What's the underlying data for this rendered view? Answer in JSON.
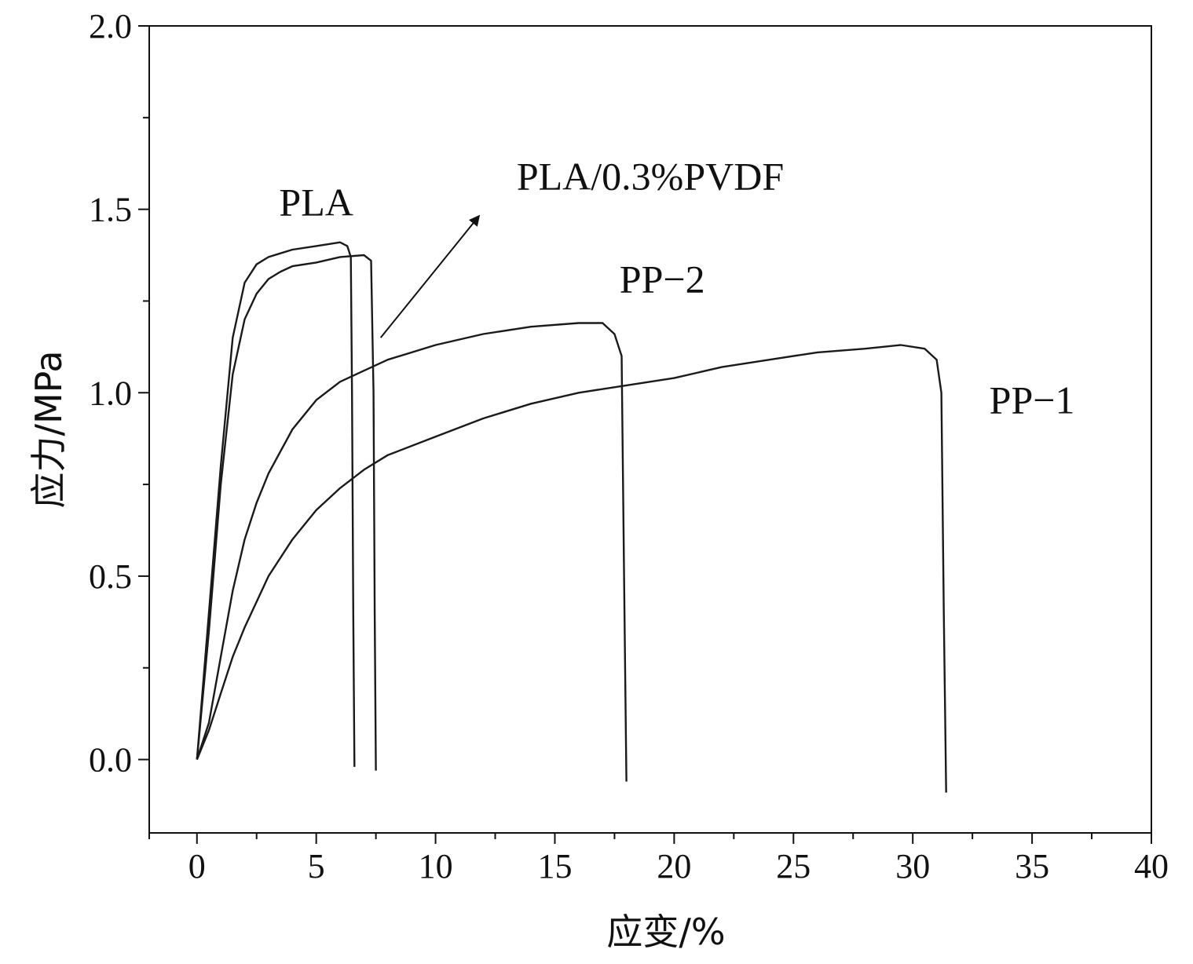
{
  "chart_data": {
    "type": "line",
    "xlabel": "应变/%",
    "ylabel": "应力/MPa",
    "xlim": [
      -2,
      40
    ],
    "ylim": [
      -0.2,
      2.0
    ],
    "x_ticks": [
      0,
      5,
      10,
      15,
      20,
      25,
      30,
      35,
      40
    ],
    "x_tick_labels": [
      "0",
      "5",
      "10",
      "15",
      "20",
      "25",
      "30",
      "35",
      "40"
    ],
    "y_ticks": [
      0.0,
      0.5,
      1.0,
      1.5,
      2.0
    ],
    "y_tick_labels": [
      "0.0",
      "0.5",
      "1.0",
      "1.5",
      "2.0"
    ],
    "grid": false,
    "series": [
      {
        "name": "PLA",
        "x": [
          0.0,
          0.5,
          1.0,
          1.5,
          2.0,
          2.5,
          3.0,
          3.5,
          4.0,
          5.0,
          6.0,
          6.3,
          6.45,
          6.5,
          6.55,
          6.6
        ],
        "y": [
          0.0,
          0.4,
          0.8,
          1.15,
          1.3,
          1.35,
          1.37,
          1.38,
          1.39,
          1.4,
          1.41,
          1.4,
          1.37,
          1.0,
          0.4,
          -0.02
        ]
      },
      {
        "name": "PLA/0.3%PVDF",
        "x": [
          0.0,
          0.5,
          1.0,
          1.5,
          2.0,
          2.5,
          3.0,
          3.5,
          4.0,
          5.0,
          6.0,
          7.0,
          7.3,
          7.4,
          7.45,
          7.5
        ],
        "y": [
          0.0,
          0.35,
          0.75,
          1.05,
          1.2,
          1.27,
          1.31,
          1.33,
          1.345,
          1.355,
          1.37,
          1.375,
          1.36,
          1.0,
          0.4,
          -0.03
        ]
      },
      {
        "name": "PP-2",
        "x": [
          0.0,
          0.5,
          1.0,
          1.5,
          2.0,
          2.5,
          3.0,
          4.0,
          5.0,
          6.0,
          7.0,
          8.0,
          10.0,
          12.0,
          14.0,
          16.0,
          17.0,
          17.5,
          17.8,
          17.9,
          18.0
        ],
        "y": [
          0.0,
          0.1,
          0.28,
          0.46,
          0.6,
          0.7,
          0.78,
          0.9,
          0.98,
          1.03,
          1.06,
          1.09,
          1.13,
          1.16,
          1.18,
          1.19,
          1.19,
          1.16,
          1.1,
          0.5,
          -0.06
        ]
      },
      {
        "name": "PP-1",
        "x": [
          0.0,
          0.5,
          1.0,
          1.5,
          2.0,
          3.0,
          4.0,
          5.0,
          6.0,
          7.0,
          8.0,
          10.0,
          12.0,
          14.0,
          16.0,
          18.0,
          20.0,
          22.0,
          24.0,
          26.0,
          28.0,
          29.5,
          30.5,
          31.0,
          31.2,
          31.3,
          31.4
        ],
        "y": [
          0.0,
          0.08,
          0.18,
          0.28,
          0.36,
          0.5,
          0.6,
          0.68,
          0.74,
          0.79,
          0.83,
          0.88,
          0.93,
          0.97,
          1.0,
          1.02,
          1.04,
          1.07,
          1.09,
          1.11,
          1.12,
          1.13,
          1.12,
          1.09,
          1.0,
          0.4,
          -0.09
        ]
      }
    ],
    "annotations": [
      {
        "text": "PLA",
        "x": 5.0,
        "y": 1.52
      },
      {
        "text": "PLA/0.3%PVDF",
        "x": 19.0,
        "y": 1.59
      },
      {
        "text": "PP−2",
        "x": 19.5,
        "y": 1.31
      },
      {
        "text": "PP−1",
        "x": 35.0,
        "y": 0.98
      }
    ],
    "arrow": {
      "from": [
        7.7,
        1.15
      ],
      "to": [
        11.8,
        1.48
      ]
    }
  }
}
